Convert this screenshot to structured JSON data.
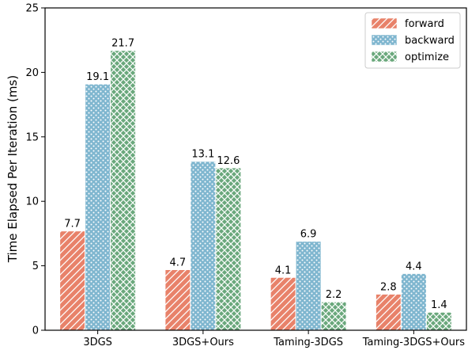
{
  "chart_data": {
    "type": "bar",
    "categories": [
      "3DGS",
      "3DGS+Ours",
      "Taming-3DGS",
      "Taming-3DGS+Ours"
    ],
    "series": [
      {
        "name": "forward",
        "values": [
          7.7,
          4.7,
          4.1,
          2.8
        ],
        "color": "#e8826a",
        "hatch": "diagonal-lines"
      },
      {
        "name": "backward",
        "values": [
          19.1,
          13.1,
          6.9,
          4.4
        ],
        "color": "#7fb6cf",
        "hatch": "dots"
      },
      {
        "name": "optimize",
        "values": [
          21.7,
          12.6,
          2.2,
          1.4
        ],
        "color": "#6aa87c",
        "hatch": "crosshatch"
      }
    ],
    "data_labels": [
      [
        "7.7",
        "4.7",
        "4.1",
        "2.8"
      ],
      [
        "19.1",
        "13.1",
        "6.9",
        "4.4"
      ],
      [
        "21.7",
        "12.6",
        "2.2",
        "1.4"
      ]
    ],
    "ylabel": "Time Elapsed Per Iteration (ms)",
    "xlabel": "",
    "ylim": [
      0,
      25
    ],
    "yticks": [
      0,
      5,
      10,
      15,
      20,
      25
    ],
    "legend_position": "top-right",
    "grid": false
  }
}
